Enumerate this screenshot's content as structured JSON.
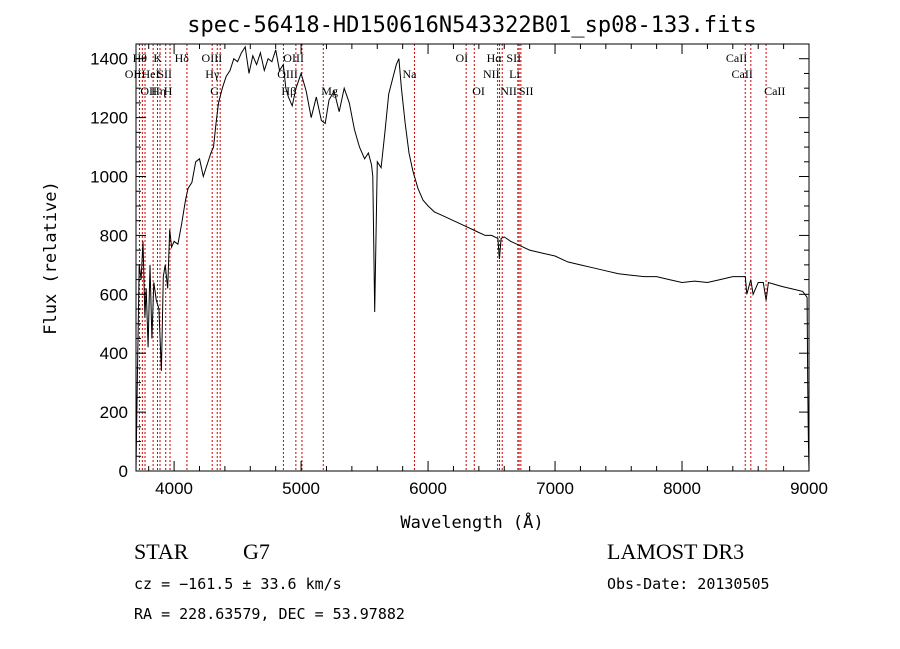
{
  "chart_data": {
    "type": "line",
    "title": "spec-56418-HD150616N543322B01_sp08-133.fits",
    "xlabel": "Wavelength (Å)",
    "ylabel": "Flux (relative)",
    "xlim": [
      3700,
      9000
    ],
    "ylim": [
      0,
      1450
    ],
    "x_ticks": [
      4000,
      5000,
      6000,
      7000,
      8000,
      9000
    ],
    "y_ticks": [
      0,
      200,
      400,
      600,
      800,
      1000,
      1200,
      1400
    ],
    "grid": false,
    "series": [
      {
        "x": [
          3700,
          3710,
          3725,
          3740,
          3755,
          3770,
          3780,
          3795,
          3810,
          3825,
          3840,
          3860,
          3880,
          3900,
          3915,
          3930,
          3950,
          3965,
          3980,
          4000,
          4030,
          4060,
          4090,
          4110,
          4140,
          4170,
          4200,
          4230,
          4260,
          4290,
          4310,
          4330,
          4350,
          4380,
          4410,
          4440,
          4470,
          4500,
          4530,
          4560,
          4590,
          4620,
          4650,
          4680,
          4710,
          4740,
          4770,
          4800,
          4830,
          4860,
          4880,
          4900,
          4930,
          4960,
          5000,
          5040,
          5080,
          5120,
          5160,
          5190,
          5220,
          5260,
          5300,
          5340,
          5380,
          5420,
          5460,
          5500,
          5530,
          5555,
          5565,
          5580,
          5600,
          5630,
          5660,
          5690,
          5720,
          5750,
          5770,
          5790,
          5820,
          5850,
          5880,
          5920,
          5960,
          6000,
          6050,
          6100,
          6150,
          6200,
          6250,
          6300,
          6350,
          6400,
          6450,
          6500,
          6550,
          6562,
          6575,
          6600,
          6650,
          6700,
          6750,
          6800,
          6900,
          7000,
          7100,
          7200,
          7300,
          7400,
          7500,
          7600,
          7700,
          7800,
          7900,
          8000,
          8100,
          8200,
          8300,
          8400,
          8498,
          8510,
          8542,
          8560,
          8600,
          8640,
          8662,
          8680,
          8720,
          8760,
          8800,
          8850,
          8900,
          8950,
          8985,
          8990,
          8995,
          9000
        ],
        "y": [
          0,
          300,
          700,
          650,
          780,
          520,
          620,
          420,
          700,
          450,
          640,
          580,
          550,
          340,
          660,
          700,
          620,
          820,
          760,
          780,
          770,
          840,
          920,
          960,
          980,
          1050,
          1060,
          1000,
          1040,
          1080,
          1100,
          1180,
          1250,
          1300,
          1340,
          1360,
          1400,
          1390,
          1420,
          1440,
          1350,
          1410,
          1380,
          1420,
          1360,
          1400,
          1390,
          1430,
          1360,
          1380,
          1300,
          1270,
          1240,
          1300,
          1350,
          1290,
          1200,
          1270,
          1190,
          1180,
          1260,
          1290,
          1220,
          1300,
          1250,
          1160,
          1100,
          1060,
          1080,
          1040,
          1000,
          540,
          1050,
          1030,
          1150,
          1280,
          1330,
          1380,
          1400,
          1300,
          1180,
          1080,
          1020,
          960,
          920,
          900,
          880,
          870,
          860,
          850,
          840,
          830,
          820,
          810,
          800,
          800,
          790,
          720,
          790,
          795,
          780,
          770,
          760,
          750,
          740,
          730,
          710,
          700,
          690,
          680,
          670,
          665,
          660,
          660,
          650,
          640,
          645,
          640,
          650,
          660,
          660,
          600,
          650,
          600,
          640,
          640,
          580,
          640,
          635,
          630,
          625,
          620,
          615,
          610,
          590,
          300,
          100,
          0
        ]
      }
    ],
    "lines": [
      {
        "wl": 3727,
        "label": "OII",
        "row": 2
      },
      {
        "wl": 3750,
        "label": "OII",
        "row": 3
      },
      {
        "wl": 3771,
        "label": "Hθ",
        "row": 1
      },
      {
        "wl": 3835,
        "label": "Hη",
        "row": 3
      },
      {
        "wl": 3869,
        "label": "HeI",
        "row": 2
      },
      {
        "wl": 3889,
        "label": "K",
        "row": 1
      },
      {
        "wl": 3934,
        "label": "H",
        "row": 3
      },
      {
        "wl": 3968,
        "label": "SII",
        "row": 2
      },
      {
        "wl": 4101,
        "label": "Hδ",
        "row": 1
      },
      {
        "wl": 4300,
        "label": "G",
        "row": 3
      },
      {
        "wl": 4340,
        "label": "Hγ",
        "row": 2
      },
      {
        "wl": 4363,
        "label": "OIII",
        "row": 1
      },
      {
        "wl": 4861,
        "label": "Hβ",
        "row": 3
      },
      {
        "wl": 4959,
        "label": "OIII",
        "row": 2
      },
      {
        "wl": 5007,
        "label": "OIII",
        "row": 1
      },
      {
        "wl": 5175,
        "label": "Mg",
        "row": 3
      },
      {
        "wl": 5893,
        "label": "Na",
        "row": 2
      },
      {
        "wl": 6300,
        "label": "OI",
        "row": 1
      },
      {
        "wl": 6364,
        "label": "OI",
        "row": 3
      },
      {
        "wl": 6548,
        "label": "NII",
        "row": 2
      },
      {
        "wl": 6563,
        "label": "Hα",
        "row": 1
      },
      {
        "wl": 6584,
        "label": "NII",
        "row": 3
      },
      {
        "wl": 6707,
        "label": "Li",
        "row": 2
      },
      {
        "wl": 6717,
        "label": "SII",
        "row": 1
      },
      {
        "wl": 6731,
        "label": "SII",
        "row": 3
      },
      {
        "wl": 8498,
        "label": "CaII",
        "row": 1
      },
      {
        "wl": 8542,
        "label": "CaII",
        "row": 2
      },
      {
        "wl": 8662,
        "label": "CaII",
        "row": 3
      }
    ]
  },
  "info": {
    "object_class": "STAR",
    "subclass": "G7",
    "survey": "LAMOST DR3",
    "cz": "cz = −161.5 ± 33.6 km/s",
    "obs_date": "Obs-Date: 20130505",
    "coords": "RA = 228.63579, DEC =  53.97882"
  },
  "colors": {
    "spectrum": "#000000",
    "line_markers": "#cc0000",
    "axes": "#000000"
  }
}
